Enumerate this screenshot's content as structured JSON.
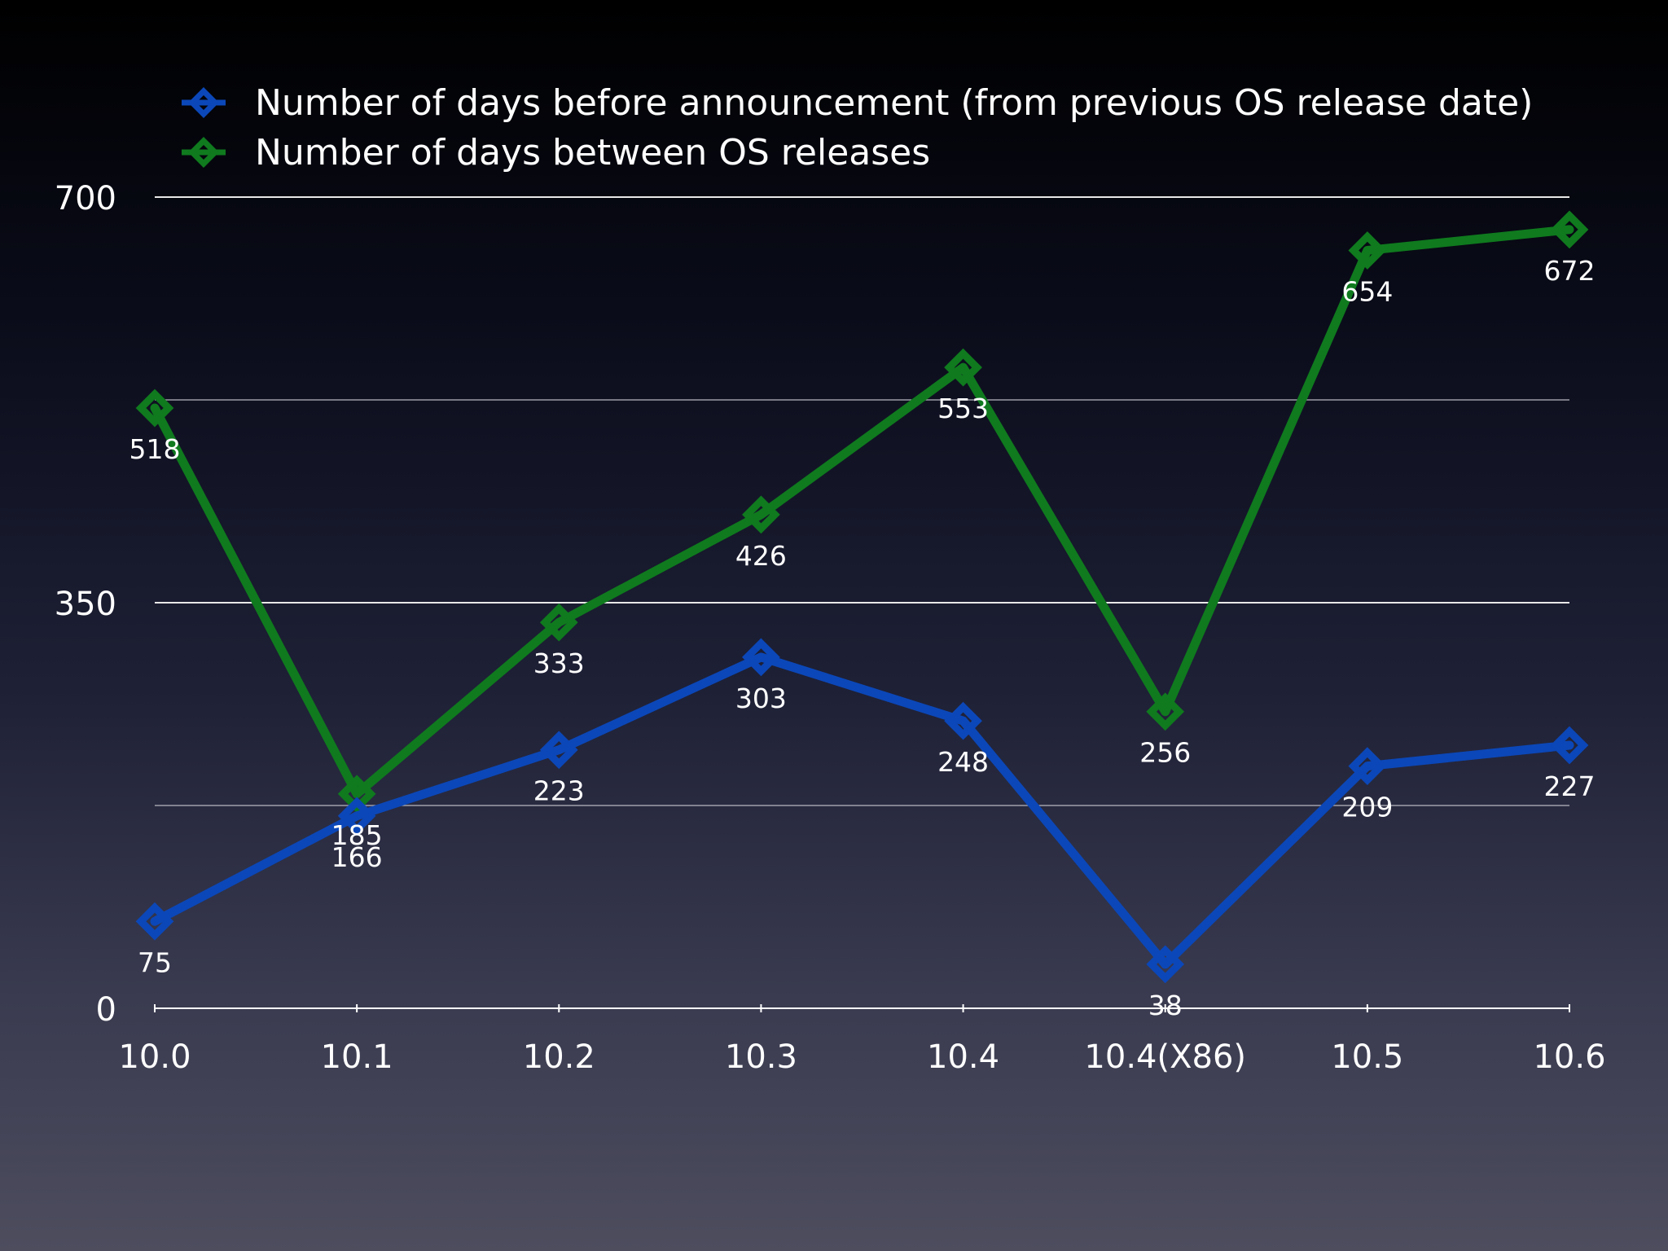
{
  "chart_data": {
    "type": "line",
    "categories": [
      "10.0",
      "10.1",
      "10.2",
      "10.3",
      "10.4",
      "10.4(X86)",
      "10.5",
      "10.6"
    ],
    "series": [
      {
        "name": "Number of days before announcement (from previous OS release date)",
        "color": "#0b47b8",
        "values": [
          75,
          166,
          223,
          303,
          248,
          38,
          209,
          227
        ]
      },
      {
        "name": "Number of days between OS releases",
        "color": "#0f7a1e",
        "values": [
          518,
          185,
          333,
          426,
          553,
          256,
          654,
          672
        ]
      }
    ],
    "y_ticks": [
      0,
      350,
      700
    ],
    "ylim": [
      0,
      700
    ],
    "grid": true,
    "legend_position": "top-left",
    "marker": "diamond"
  }
}
